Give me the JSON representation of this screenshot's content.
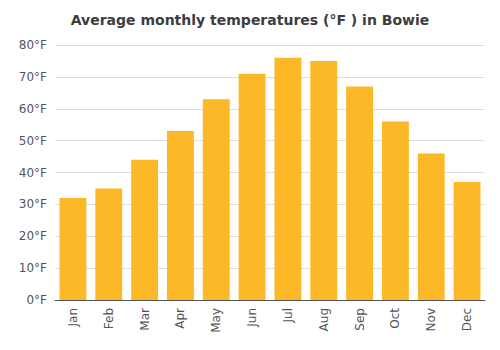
{
  "chart_data": {
    "type": "bar",
    "title": "Average monthly temperatures (°F ) in Bowie",
    "categories": [
      "Jan",
      "Feb",
      "Mar",
      "Apr",
      "May",
      "Jun",
      "Jul",
      "Aug",
      "Sep",
      "Oct",
      "Nov",
      "Dec"
    ],
    "values": [
      32,
      35,
      44,
      53,
      63,
      71,
      76,
      75,
      67,
      56,
      46,
      37
    ],
    "color": "#FDB827",
    "ylim": [
      0,
      80
    ],
    "yticks": [
      {
        "value": 0,
        "label": "0°F"
      },
      {
        "value": 10,
        "label": "10°F"
      },
      {
        "value": 20,
        "label": "20°F"
      },
      {
        "value": 30,
        "label": "30°F"
      },
      {
        "value": 40,
        "label": "40°F"
      },
      {
        "value": 50,
        "label": "50°F"
      },
      {
        "value": 60,
        "label": "60°F"
      },
      {
        "value": 70,
        "label": "70°F"
      },
      {
        "value": 80,
        "label": "80°F"
      }
    ],
    "grid": true
  }
}
